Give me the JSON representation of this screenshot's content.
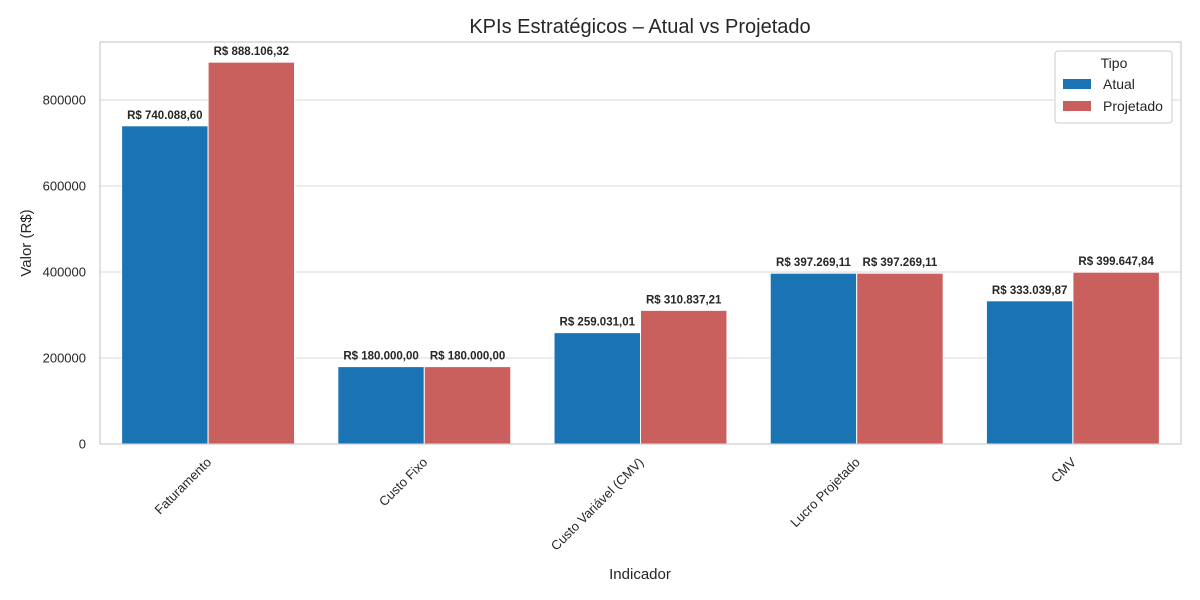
{
  "chart_data": {
    "type": "bar",
    "title": "KPIs Estratégicos – Atual vs Projetado",
    "xlabel": "Indicador",
    "ylabel": "Valor (R$)",
    "ylim": [
      0,
      935000
    ],
    "yticks": [
      0,
      200000,
      400000,
      600000,
      800000
    ],
    "ytick_labels": [
      "0",
      "200000",
      "400000",
      "600000",
      "800000"
    ],
    "grid": true,
    "legend_position": "top-right",
    "legend_title": "Tipo",
    "categories": [
      "Faturamento",
      "Custo Fixo",
      "Custo Variável (CMV)",
      "Lucro Projetado",
      "CMV"
    ],
    "series": [
      {
        "name": "Atual",
        "color": "#1a74b4",
        "values": [
          740088.6,
          180000.0,
          259031.01,
          397269.11,
          333039.87
        ],
        "labels": [
          "R$ 740.088,60",
          "R$ 180.000,00",
          "R$ 259.031,01",
          "R$ 397.269,11",
          "R$ 333.039,87"
        ]
      },
      {
        "name": "Projetado",
        "color": "#c9605d",
        "values": [
          888106.32,
          180000.0,
          310837.21,
          397269.11,
          399647.84
        ],
        "labels": [
          "R$ 888.106,32",
          "R$ 180.000,00",
          "R$ 310.837,21",
          "R$ 397.269,11",
          "R$ 399.647,84"
        ]
      }
    ]
  },
  "colors": {
    "grid": "#d9d9d9",
    "frame": "#cccccc"
  }
}
